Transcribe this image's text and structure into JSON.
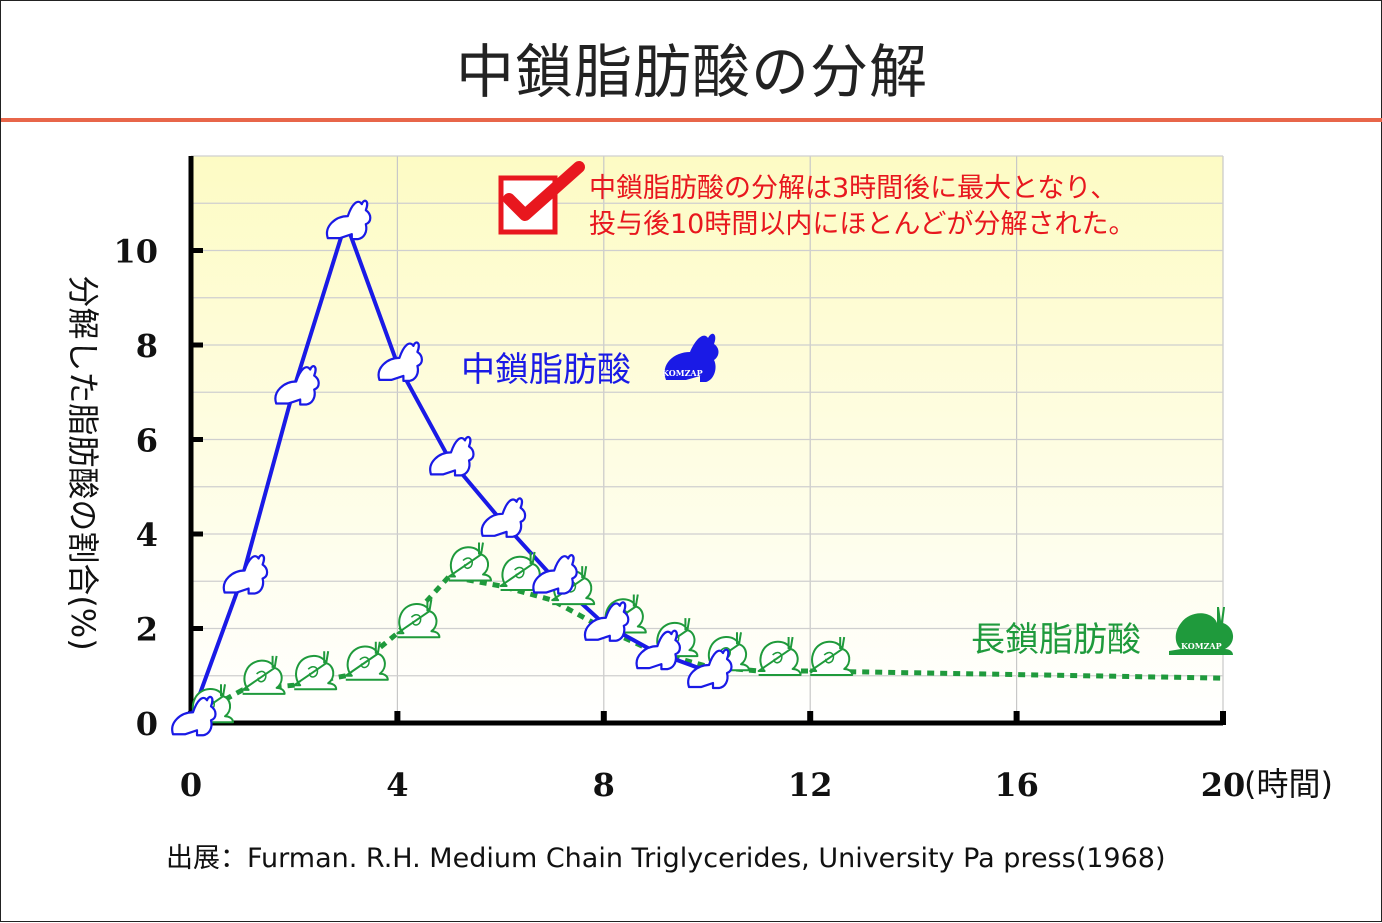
{
  "title": "中鎖脂肪酸の分解",
  "source": "出展：Furman. R.H. Medium Chain Triglycerides, University Pa press(1968)",
  "colors": {
    "accent_rule": "#e8664a",
    "mcfa": "#1a1ae6",
    "lcfa": "#1f9a3c",
    "note": "#e8171e",
    "plot_bg_top": "#fdfbc4",
    "plot_bg_bottom": "#ffffff"
  },
  "chart_data": {
    "type": "line",
    "ylabel": "分解した脂肪酸の割合(%)",
    "x_unit_label": "(時間)",
    "xlim": [
      0,
      20
    ],
    "ylim": [
      0,
      12
    ],
    "x_ticks": [
      0,
      4,
      8,
      12,
      16,
      20
    ],
    "y_ticks": [
      0,
      2,
      4,
      6,
      8,
      10
    ],
    "grid": true,
    "series": [
      {
        "name": "中鎖脂肪酸",
        "style": "solid",
        "marker": "rabbit-icon",
        "color": "#1a1ae6",
        "points": [
          [
            0,
            0.1
          ],
          [
            1,
            3.1
          ],
          [
            2,
            7.1
          ],
          [
            3,
            10.6
          ],
          [
            4,
            7.6
          ],
          [
            5,
            5.6
          ],
          [
            6,
            4.3
          ],
          [
            7,
            3.1
          ],
          [
            8,
            2.1
          ],
          [
            9,
            1.5
          ],
          [
            10,
            1.1
          ]
        ]
      },
      {
        "name": "長鎖脂肪酸",
        "style": "dotted",
        "marker": "snail-icon",
        "color": "#1f9a3c",
        "points": [
          [
            0,
            0.1
          ],
          [
            1,
            0.7
          ],
          [
            2,
            0.8
          ],
          [
            3,
            1.0
          ],
          [
            4,
            1.9
          ],
          [
            5,
            3.1
          ],
          [
            6,
            2.9
          ],
          [
            7,
            2.6
          ],
          [
            8,
            2.0
          ],
          [
            9,
            1.5
          ],
          [
            10,
            1.2
          ],
          [
            11,
            1.1
          ],
          [
            12,
            1.1
          ]
        ],
        "tail": [
          [
            12,
            1.1
          ],
          [
            20,
            0.95
          ]
        ]
      }
    ],
    "annotation": {
      "lines": [
        "中鎖脂肪酸の分解は3時間後に最大となり、",
        "投与後10時間以内にほとんどが分解された。"
      ],
      "icon": "checkbox-check-icon"
    },
    "series_badges": [
      "KOMZAP",
      "KOMZAP"
    ]
  }
}
